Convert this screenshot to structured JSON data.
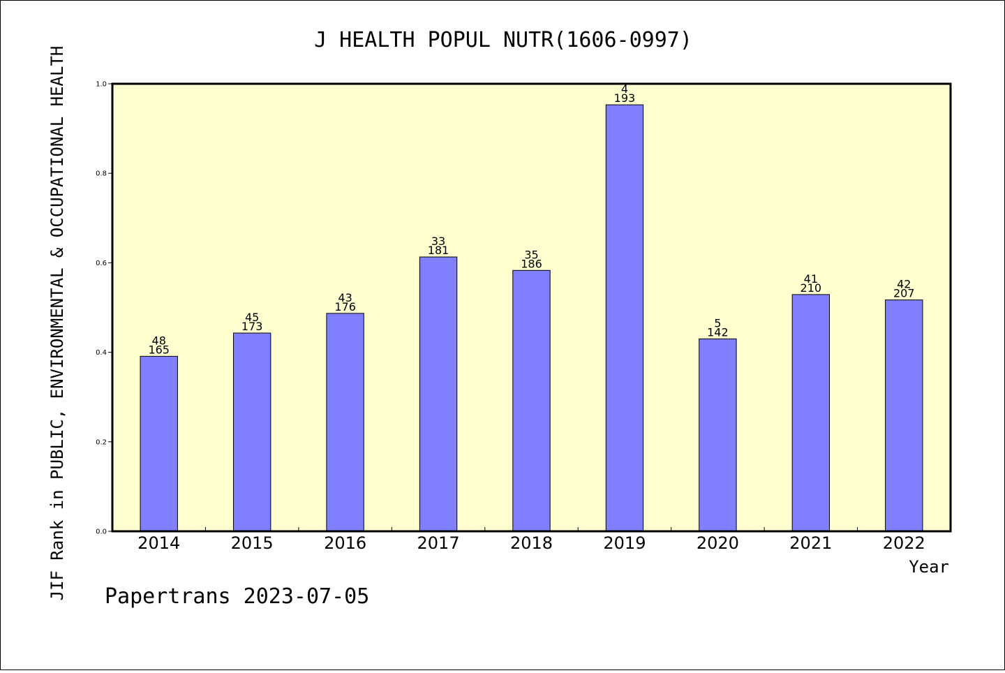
{
  "chart_data": {
    "type": "bar",
    "title": "J HEALTH POPUL NUTR(1606-0997)",
    "xlabel": "Year",
    "ylabel": "JIF Rank in PUBLIC, ENVIRONMENTAL & OCCUPATIONAL HEALTH",
    "categories": [
      "2014",
      "2015",
      "2016",
      "2017",
      "2018",
      "2019",
      "2020",
      "2021",
      "2022"
    ],
    "values": [
      0.391,
      0.443,
      0.487,
      0.613,
      0.583,
      0.953,
      0.43,
      0.529,
      0.517
    ],
    "rank": [
      "48",
      "45",
      "43",
      "33",
      "35",
      "4",
      "5",
      "41",
      "42"
    ],
    "total": [
      "165",
      "173",
      "176",
      "181",
      "186",
      "193",
      "142",
      "210",
      "207"
    ],
    "ylim": [
      0,
      1.0
    ],
    "yticks": [
      "0.0",
      "0.2",
      "0.4",
      "0.6",
      "0.8",
      "1.0"
    ],
    "grid": false,
    "bar_color": "#8080ff",
    "plot_background": "#ffffd0"
  },
  "footer": {
    "watermark": "Papertrans 2023-07-05"
  }
}
